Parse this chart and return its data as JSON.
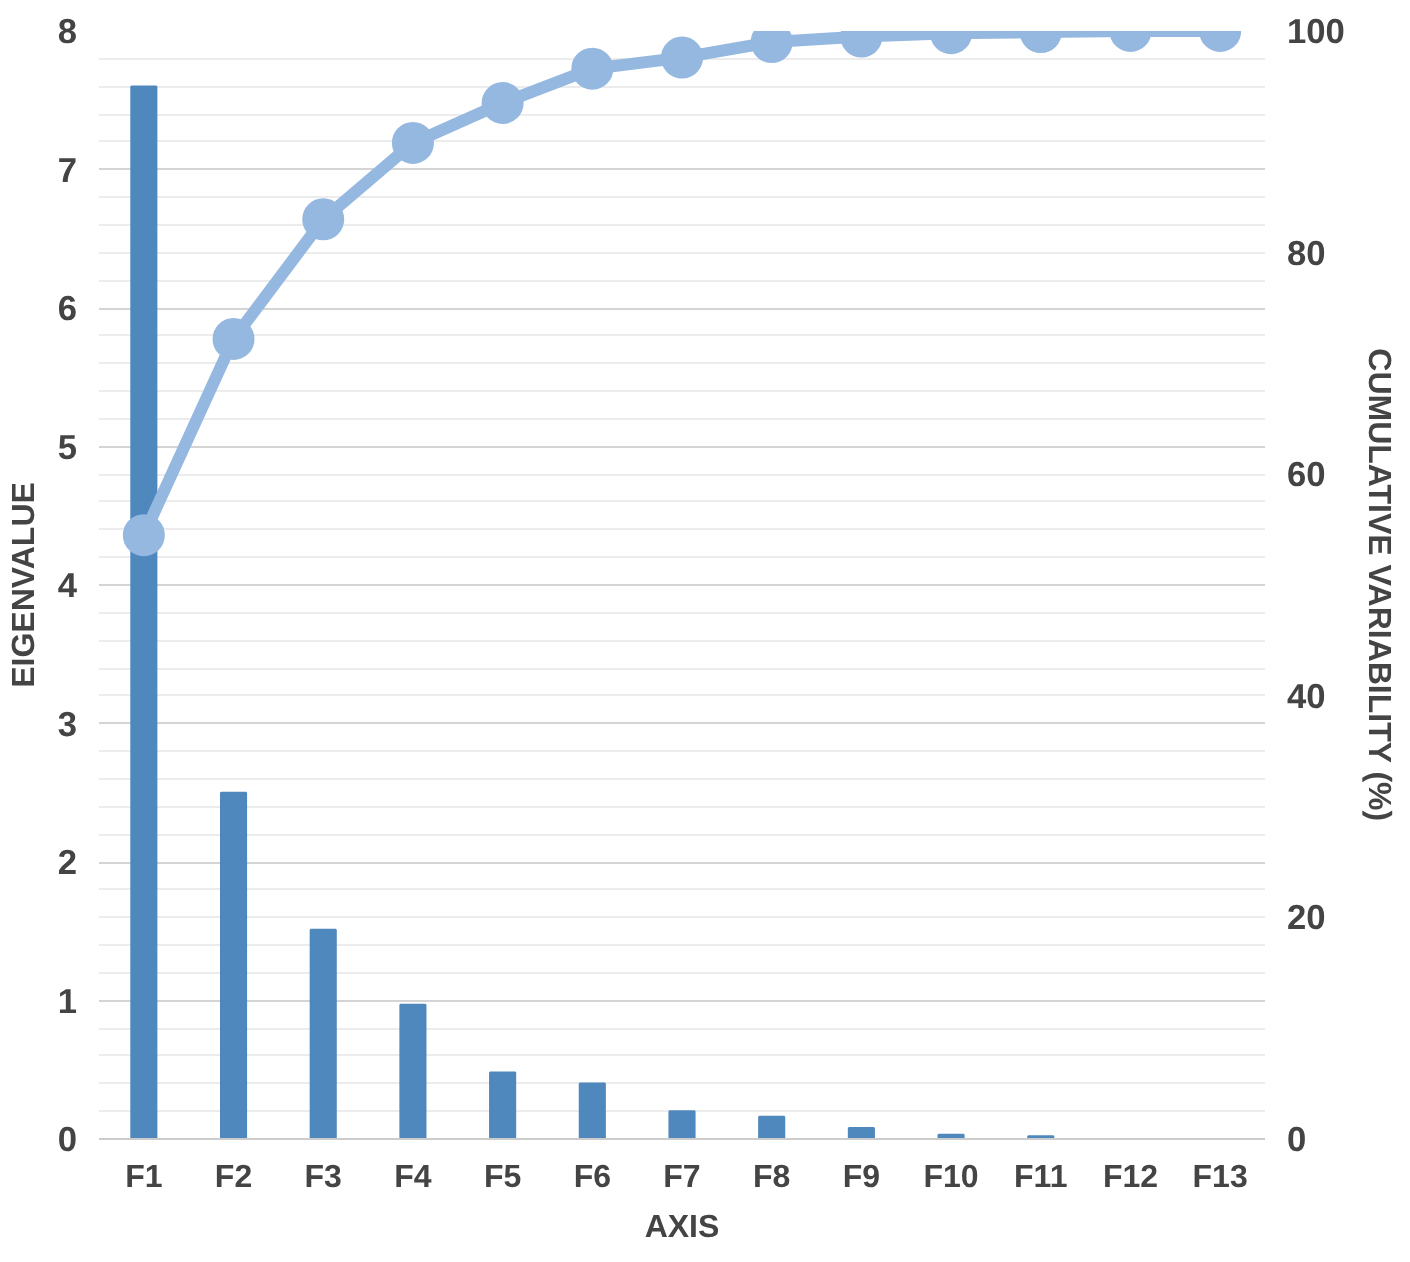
{
  "chart_data": {
    "type": "bar",
    "xlabel": "AXIS",
    "ylabel": "EIGENVALUE",
    "y2label": "CUMULATIVE VARIABILITY (%)",
    "categories": [
      "F1",
      "F2",
      "F3",
      "F4",
      "F5",
      "F6",
      "F7",
      "F8",
      "F9",
      "F10",
      "F11",
      "F12",
      "F13"
    ],
    "series": [
      {
        "color": "#4f88bd",
        "values": [
          7.6,
          2.5,
          1.51,
          0.97,
          0.48,
          0.4,
          0.2,
          0.16,
          0.08,
          0.03,
          0.02,
          0.0,
          0.0
        ]
      },
      {
        "type": "line",
        "axis": "y2",
        "color": "#95b8e0",
        "marker": "circle",
        "values": [
          54.5,
          72.2,
          83,
          89.9,
          93.5,
          96.6,
          97.6,
          99,
          99.5,
          99.8,
          99.9,
          100,
          100
        ]
      }
    ],
    "ylim": [
      0,
      8
    ],
    "yticks": [
      0,
      1,
      2,
      3,
      4,
      5,
      6,
      7,
      8
    ],
    "y2lim": [
      0,
      100
    ],
    "y2ticks": [
      0,
      20,
      40,
      60,
      80,
      100
    ],
    "grid": "y"
  }
}
